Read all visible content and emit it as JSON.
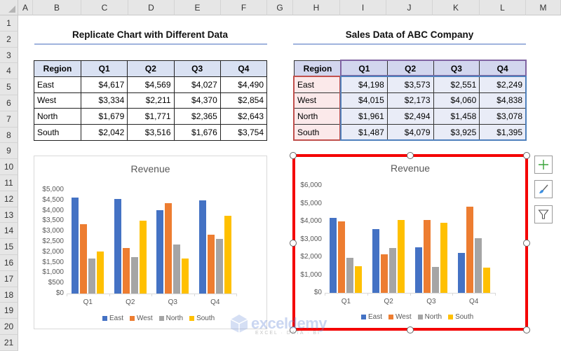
{
  "spreadsheet": {
    "columns": [
      "A",
      "B",
      "C",
      "D",
      "E",
      "F",
      "G",
      "H",
      "I",
      "J",
      "K",
      "L",
      "M"
    ],
    "rows": [
      "1",
      "2",
      "3",
      "4",
      "5",
      "6",
      "7",
      "8",
      "9",
      "10",
      "11",
      "12",
      "13",
      "14",
      "15",
      "16",
      "17",
      "18",
      "19",
      "20",
      "21"
    ]
  },
  "left": {
    "title": "Replicate Chart with Different Data",
    "table": {
      "headers": [
        "Region",
        "Q1",
        "Q2",
        "Q3",
        "Q4"
      ],
      "rows": [
        {
          "region": "East",
          "values": [
            "$4,617",
            "$4,569",
            "$4,027",
            "$4,490"
          ]
        },
        {
          "region": "West",
          "values": [
            "$3,334",
            "$2,211",
            "$4,370",
            "$2,854"
          ]
        },
        {
          "region": "North",
          "values": [
            "$1,679",
            "$1,771",
            "$2,365",
            "$2,643"
          ]
        },
        {
          "region": "South",
          "values": [
            "$2,042",
            "$3,516",
            "$1,676",
            "$3,754"
          ]
        }
      ]
    }
  },
  "right": {
    "title": "Sales Data of ABC Company",
    "table": {
      "headers": [
        "Region",
        "Q1",
        "Q2",
        "Q3",
        "Q4"
      ],
      "rows": [
        {
          "region": "East",
          "values": [
            "$4,198",
            "$3,573",
            "$2,551",
            "$2,249"
          ]
        },
        {
          "region": "West",
          "values": [
            "$4,015",
            "$2,173",
            "$4,060",
            "$4,838"
          ]
        },
        {
          "region": "North",
          "values": [
            "$1,961",
            "$2,494",
            "$1,458",
            "$3,078"
          ]
        },
        {
          "region": "South",
          "values": [
            "$1,487",
            "$4,079",
            "$3,925",
            "$1,395"
          ]
        }
      ]
    }
  },
  "colors": {
    "East": "#4472c4",
    "West": "#ed7d31",
    "North": "#a5a5a5",
    "South": "#ffc000",
    "selection": "#f40000"
  },
  "chart_data": [
    {
      "type": "bar",
      "title": "Revenue",
      "categories": [
        "Q1",
        "Q2",
        "Q3",
        "Q4"
      ],
      "series": [
        {
          "name": "East",
          "values": [
            4617,
            4569,
            4027,
            4490
          ]
        },
        {
          "name": "West",
          "values": [
            3334,
            2211,
            4370,
            2854
          ]
        },
        {
          "name": "North",
          "values": [
            1679,
            1771,
            2365,
            2643
          ]
        },
        {
          "name": "South",
          "values": [
            2042,
            3516,
            1676,
            3754
          ]
        }
      ],
      "yticks": [
        "$0",
        "$500",
        "$1,000",
        "$1,500",
        "$2,000",
        "$2,500",
        "$3,000",
        "$3,500",
        "$4,000",
        "$4,500",
        "$5,000"
      ],
      "ylim": [
        0,
        5000
      ],
      "xlabel": "",
      "ylabel": "",
      "legend_position": "bottom",
      "grid": false
    },
    {
      "type": "bar",
      "title": "Revenue",
      "categories": [
        "Q1",
        "Q2",
        "Q3",
        "Q4"
      ],
      "series": [
        {
          "name": "East",
          "values": [
            4198,
            3573,
            2551,
            2249
          ]
        },
        {
          "name": "West",
          "values": [
            4015,
            2173,
            4060,
            4838
          ]
        },
        {
          "name": "North",
          "values": [
            1961,
            2494,
            1458,
            3078
          ]
        },
        {
          "name": "South",
          "values": [
            1487,
            4079,
            3925,
            1395
          ]
        }
      ],
      "yticks": [
        "$0",
        "$1,000",
        "$2,000",
        "$3,000",
        "$4,000",
        "$5,000",
        "$6,000"
      ],
      "ylim": [
        0,
        6000
      ],
      "xlabel": "",
      "ylabel": "",
      "legend_position": "bottom",
      "grid": false,
      "selected": true
    }
  ],
  "chart_tools": [
    {
      "name": "chart-elements",
      "icon": "plus-icon"
    },
    {
      "name": "chart-styles",
      "icon": "brush-icon"
    },
    {
      "name": "chart-filters",
      "icon": "funnel-icon"
    }
  ],
  "watermark": {
    "text": "exceldemy",
    "sub": "EXCEL · DATA · BI"
  }
}
